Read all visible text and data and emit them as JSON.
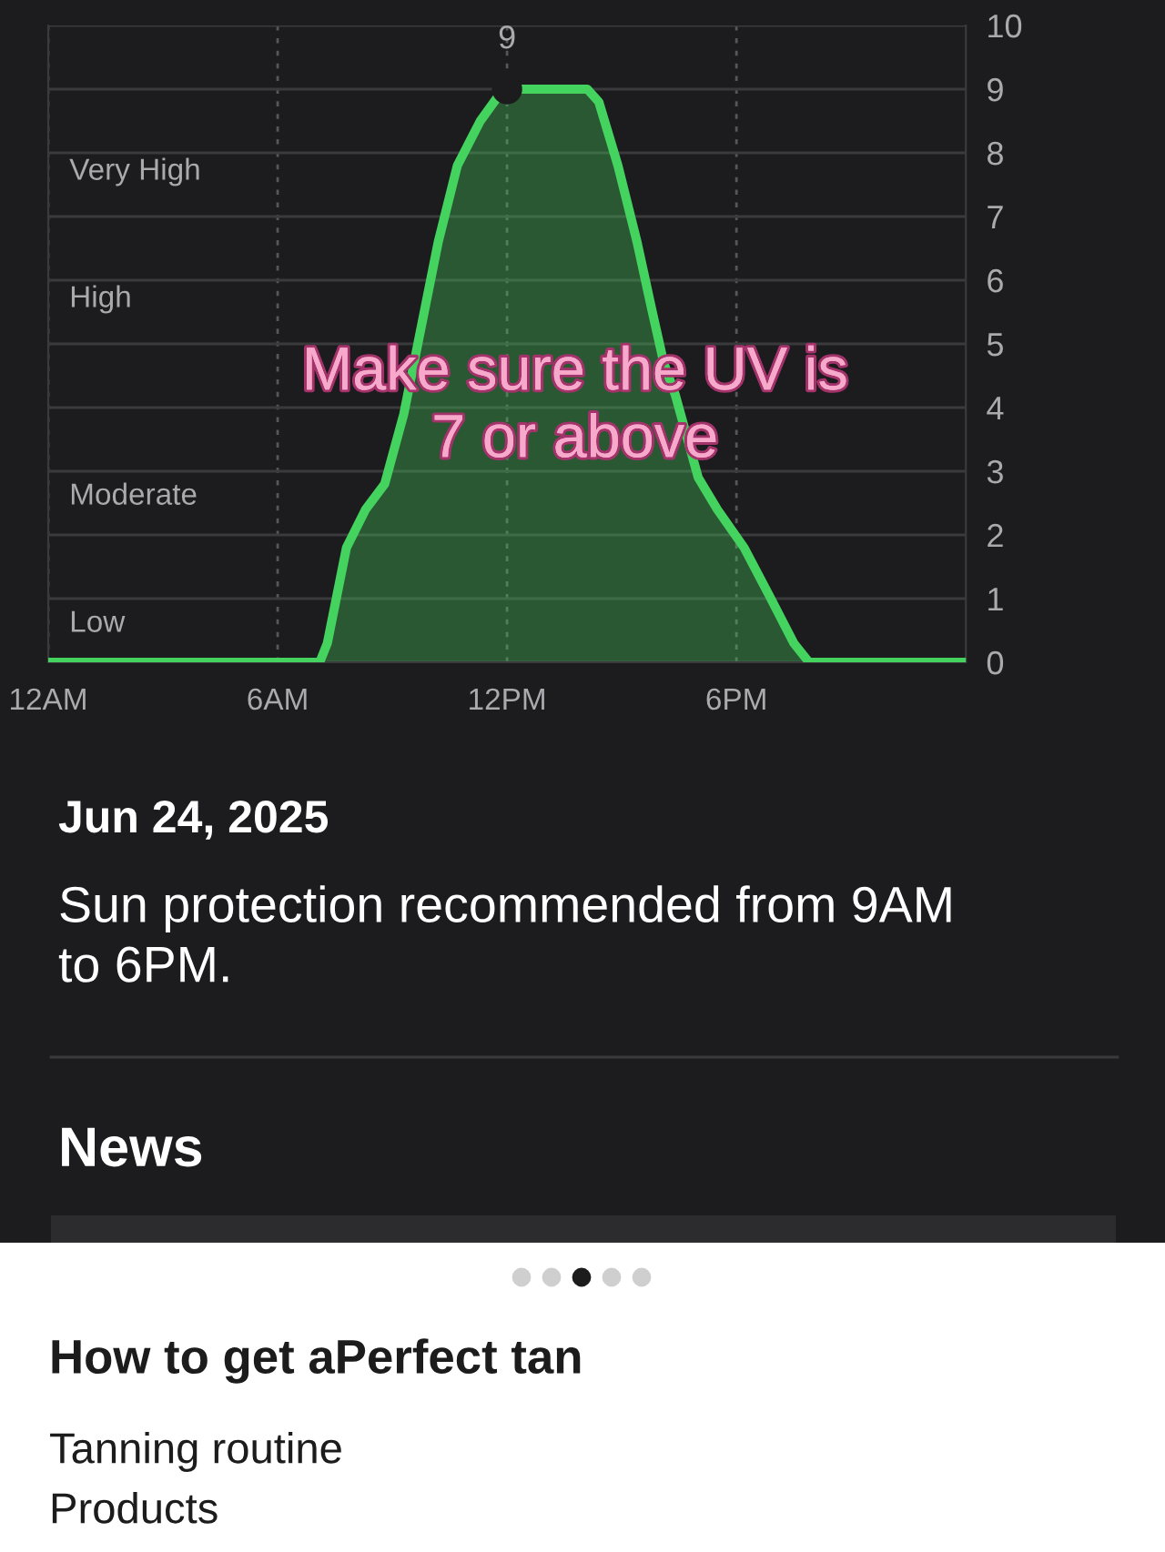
{
  "chart_data": {
    "type": "area",
    "x": [
      "2025-06-24T00:00",
      "2025-06-24T07:06",
      "2025-06-24T07:18",
      "2025-06-24T07:48",
      "2025-06-24T08:18",
      "2025-06-24T08:48",
      "2025-06-24T09:18",
      "2025-06-24T09:36",
      "2025-06-24T10:12",
      "2025-06-24T10:42",
      "2025-06-24T11:18",
      "2025-06-24T11:54",
      "2025-06-24T14:06",
      "2025-06-24T14:24",
      "2025-06-24T14:54",
      "2025-06-24T15:24",
      "2025-06-24T15:48",
      "2025-06-24T16:06",
      "2025-06-24T16:24",
      "2025-06-24T17:00",
      "2025-06-24T17:30",
      "2025-06-24T18:12",
      "2025-06-24T18:54",
      "2025-06-24T19:30",
      "2025-06-24T19:54",
      "2025-06-25T00:00"
    ],
    "series": [
      {
        "color": "#45d35f",
        "values": [
          0,
          0,
          0.3,
          1.8,
          2.4,
          2.8,
          3.9,
          4.8,
          6.6,
          7.8,
          8.5,
          9,
          9,
          8.8,
          7.8,
          6.6,
          5.5,
          4.7,
          4.2,
          2.9,
          2.4,
          1.8,
          1.0,
          0.3,
          0,
          0
        ]
      },
      {
        "type": "scatter",
        "color": "#1c1c1e",
        "marker": "circle",
        "x": [
          "2025-06-24T12:00"
        ],
        "values": [
          9
        ],
        "value_labels": [
          "9"
        ]
      }
    ],
    "xlim": [
      "2025-06-24T00:00",
      "2025-06-25T00:00"
    ],
    "xticks": [
      {
        "value": "2025-06-24T00:00",
        "label": "12AM"
      },
      {
        "value": "2025-06-24T06:00",
        "label": "6AM"
      },
      {
        "value": "2025-06-24T12:00",
        "label": "12PM"
      },
      {
        "value": "2025-06-24T18:00",
        "label": "6PM"
      }
    ],
    "ylim": [
      0,
      10
    ],
    "yticks": [
      0,
      1,
      2,
      3,
      4,
      5,
      6,
      7,
      8,
      9,
      10
    ],
    "grid": true,
    "marker": "none",
    "line_style": "solid",
    "annotations": [
      "Very High",
      "High",
      "Moderate",
      "Low",
      "Make sure the UV is\n7 or above",
      "Jun 24, 2025",
      "Sun protection recommended from 9AM\nto 6PM.",
      "News",
      "How to get aPerfect tan",
      "Tanning routine",
      "Products"
    ]
  }
}
